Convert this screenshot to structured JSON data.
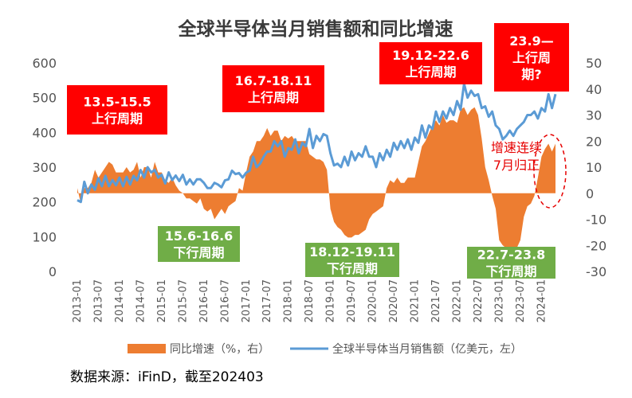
{
  "chart_data": {
    "type": "combo",
    "title": "全球半导体当月销售额和同比增速",
    "left_axis": {
      "ticks": [
        "0",
        "100",
        "200",
        "300",
        "400",
        "500",
        "600"
      ],
      "ylim": [
        0,
        600
      ]
    },
    "right_axis": {
      "ticks": [
        "-30",
        "-20",
        "-10",
        "0",
        "10",
        "20",
        "30",
        "40",
        "50"
      ],
      "ylim": [
        -30,
        50
      ]
    },
    "x_ticks": [
      "2013-01",
      "2013-07",
      "2014-01",
      "2014-07",
      "2015-01",
      "2015-07",
      "2016-01",
      "2016-07",
      "2017-01",
      "2017-07",
      "2018-01",
      "2018-07",
      "2019-01",
      "2019-07",
      "2020-01",
      "2020-07",
      "2021-01",
      "2021-07",
      "2022-01",
      "2022-07",
      "2023-01",
      "2023-07",
      "2024-01"
    ],
    "series": [
      {
        "name": "同比增速（%，右）",
        "type": "area",
        "axis": "right",
        "color": "#ed7d31",
        "values": [
          2,
          -4,
          2,
          2,
          4,
          9,
          6,
          8,
          10,
          12,
          11,
          8,
          8,
          8,
          10,
          8,
          9,
          12,
          6,
          10,
          10,
          6,
          12,
          8,
          8,
          5,
          4,
          6,
          3,
          1,
          0,
          -2,
          -2,
          -3,
          -4,
          -2,
          -6,
          -7,
          -6,
          -10,
          -8,
          -6,
          -8,
          -5,
          -4,
          -3,
          2,
          1,
          8,
          14,
          16,
          20,
          20,
          22,
          25,
          22,
          24,
          24,
          20,
          22,
          21,
          22,
          20,
          20,
          20,
          20,
          15,
          14,
          13,
          13,
          12,
          9,
          -6,
          -11,
          -13,
          -14,
          -16,
          -17,
          -17,
          -16,
          -16,
          -15,
          -14,
          -10,
          -8,
          -7,
          -6,
          -5,
          2,
          5,
          4,
          6,
          4,
          4,
          6,
          6,
          6,
          12,
          18,
          20,
          23,
          26,
          28,
          26,
          30,
          27,
          28,
          28,
          27,
          32,
          33,
          30,
          32,
          33,
          30,
          21,
          10,
          5,
          -1,
          -6,
          -18,
          -20,
          -21,
          -21,
          -21,
          -21,
          -18,
          -9,
          -5,
          -4,
          -1,
          6,
          14,
          17,
          19,
          16,
          19
        ]
      },
      {
        "name": "全球半导体当月销售额（亿美元，左）",
        "type": "line",
        "axis": "left",
        "color": "#5b9bd5",
        "values": [
          205,
          200,
          258,
          225,
          250,
          235,
          268,
          245,
          275,
          245,
          263,
          248,
          270,
          245,
          272,
          250,
          275,
          262,
          292,
          270,
          300,
          285,
          292,
          270,
          278,
          253,
          285,
          263,
          276,
          260,
          278,
          250,
          265,
          250,
          265,
          265,
          255,
          240,
          240,
          255,
          250,
          242,
          262,
          265,
          290,
          280,
          283,
          270,
          284,
          290,
          330,
          300,
          310,
          330,
          345,
          345,
          375,
          360,
          375,
          330,
          355,
          350,
          380,
          340,
          370,
          360,
          410,
          355,
          390,
          375,
          395,
          390,
          340,
          305,
          310,
          300,
          330,
          305,
          345,
          320,
          340,
          330,
          360,
          330,
          330,
          300,
          340,
          320,
          350,
          330,
          370,
          350,
          375,
          355,
          380,
          350,
          385,
          370,
          420,
          385,
          420,
          410,
          460,
          430,
          460,
          440,
          470,
          450,
          490,
          465,
          540,
          500,
          520,
          505,
          510,
          470,
          475,
          445,
          460,
          420,
          410,
          380,
          390,
          405,
          390,
          410,
          420,
          430,
          450,
          450,
          460,
          440,
          470,
          460,
          510,
          470,
          510
        ]
      }
    ],
    "annotations": {
      "up_cycle_1": "13.5-15.5\n上行周期",
      "up_cycle_2": "16.7-18.11\n上行周期",
      "up_cycle_3": "19.12-22.6\n上行周期",
      "up_cycle_4": "23.9—\n上行周\n期?",
      "down_cycle_1": "15.6-16.6\n下行周期",
      "down_cycle_2": "18.12-19.11\n下行周期",
      "down_cycle_3": "22.7-23.8\n下行周期",
      "note": "增速连续\n7月归正"
    },
    "legend": {
      "position": "bottom"
    },
    "source": "数据来源：iFinD，截至202403"
  }
}
